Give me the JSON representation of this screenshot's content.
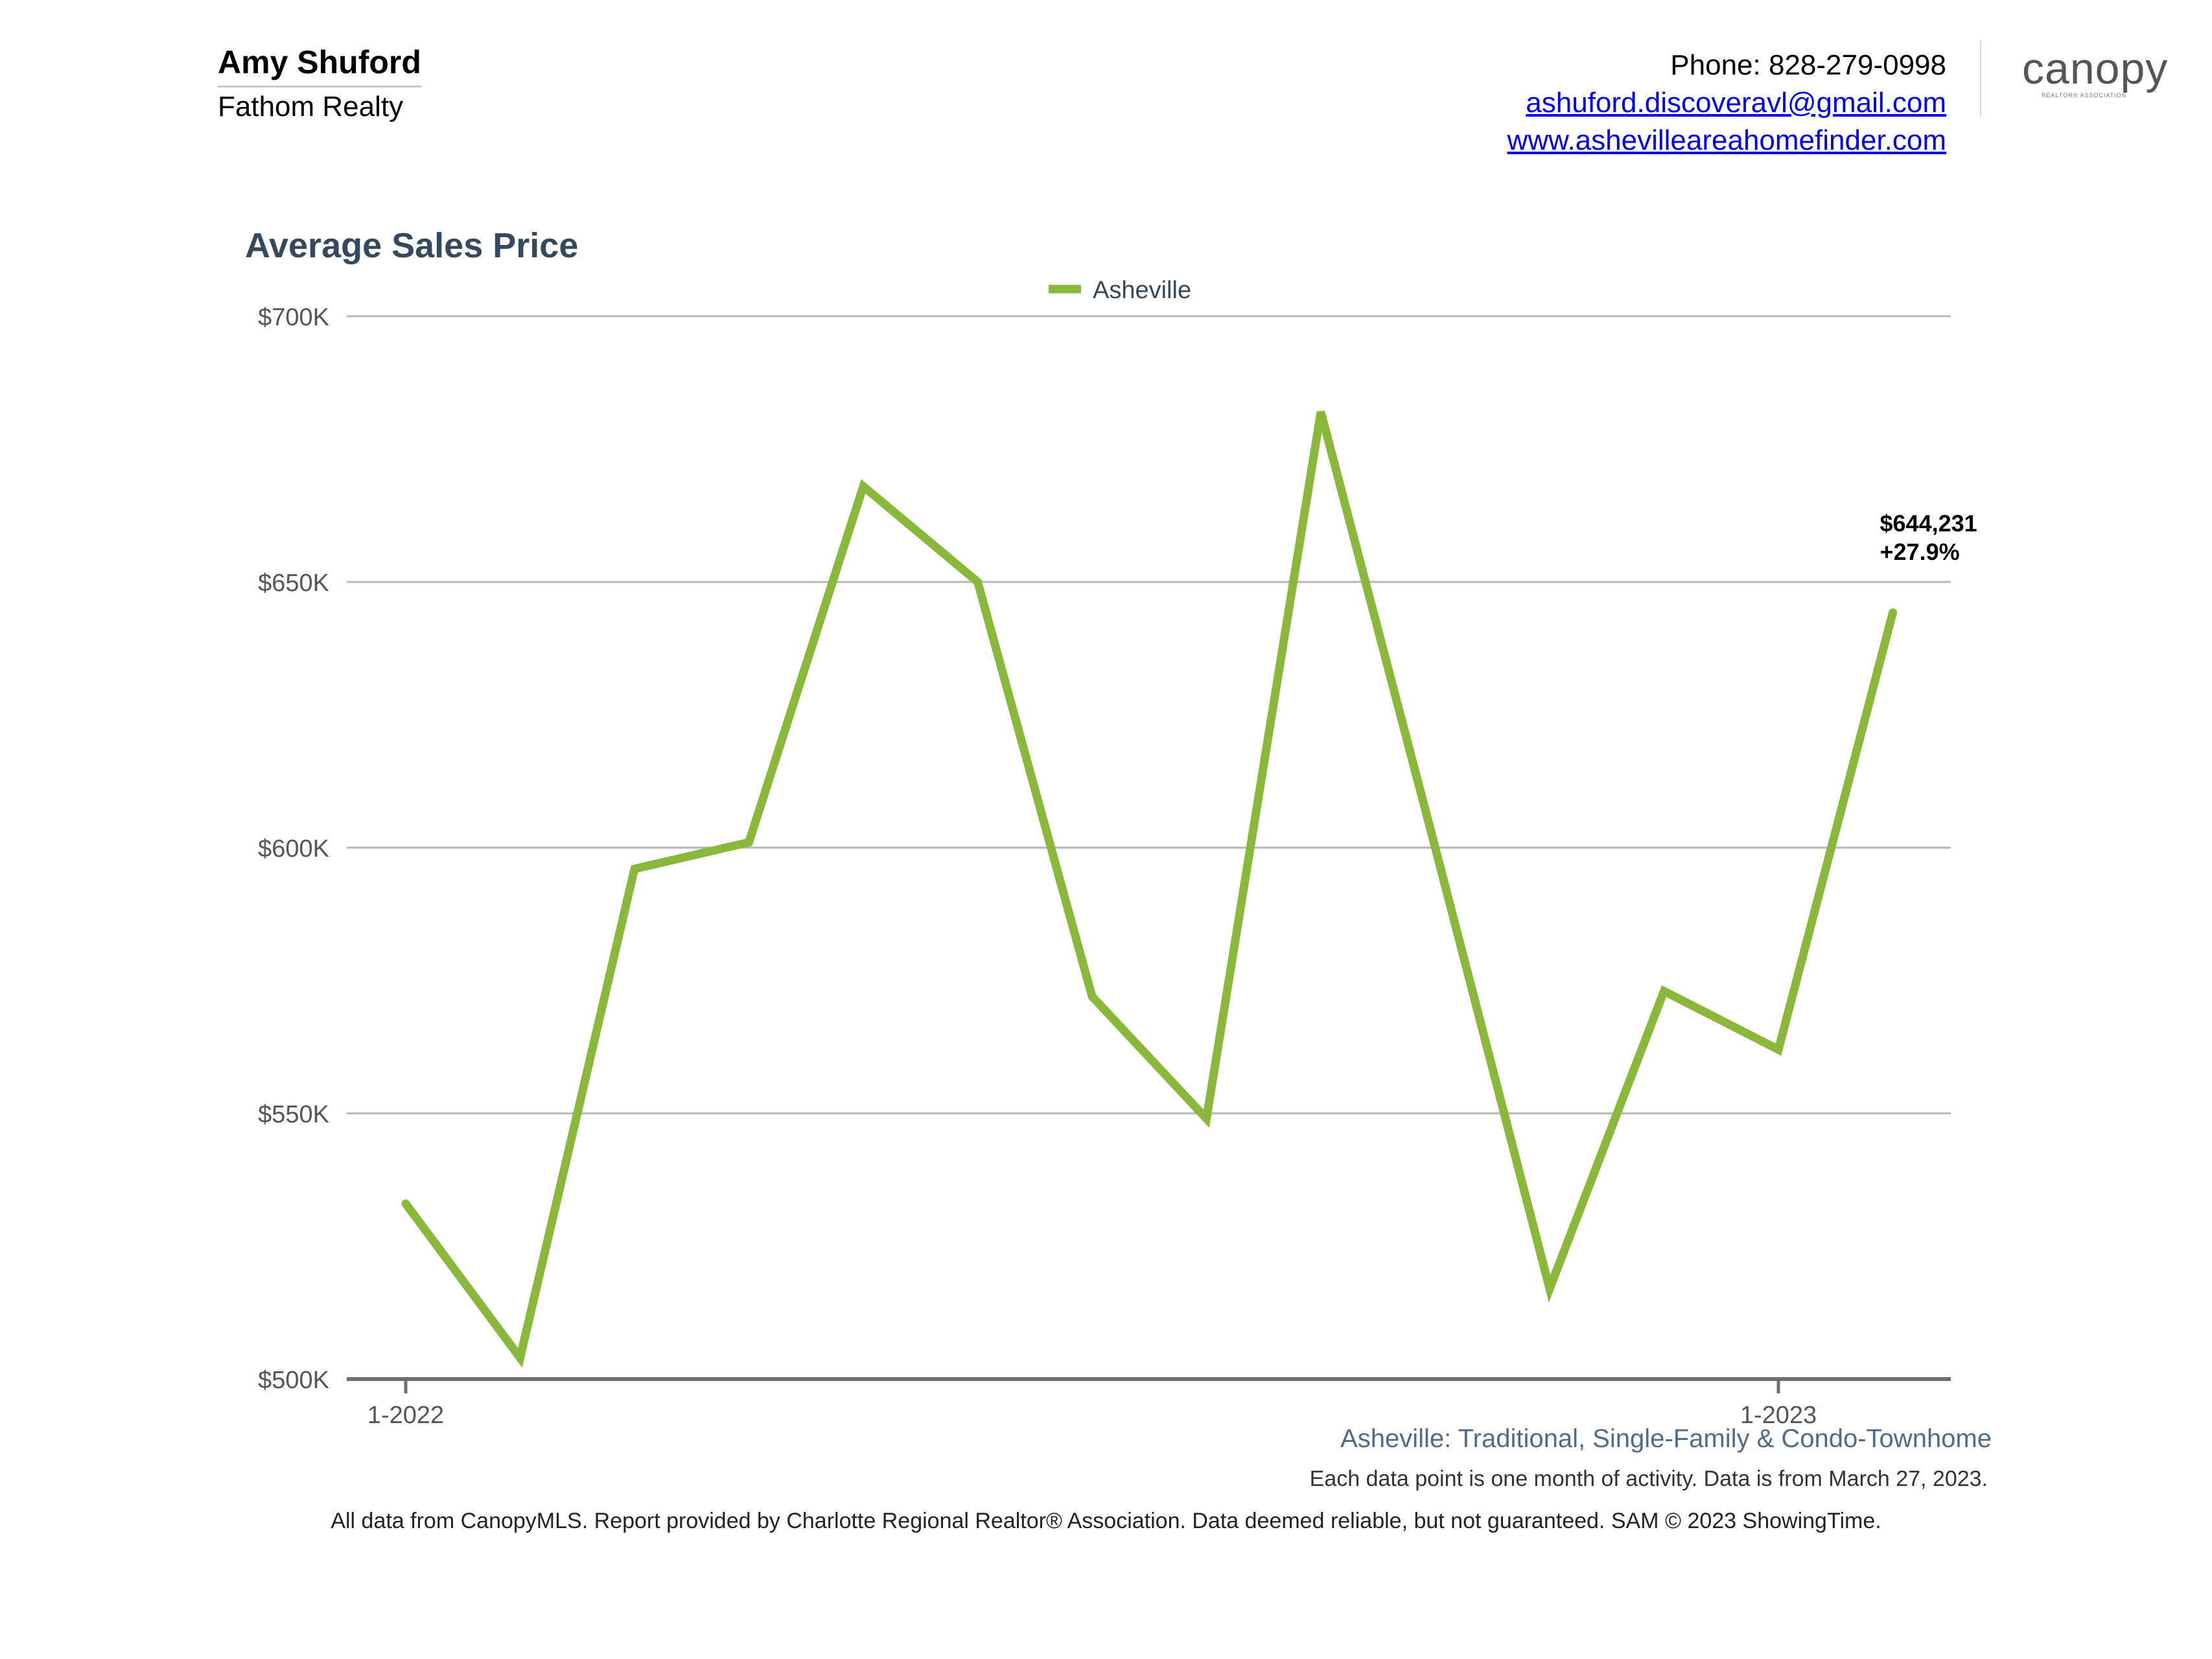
{
  "header": {
    "agent_name": "Amy Shuford",
    "agent_company": "Fathom Realty",
    "phone": "Phone: 828-279-0998",
    "email": "ashuford.discoveravl@gmail.com",
    "website": "www.ashevilleareahomefinder.com",
    "logo_text": "canopy",
    "logo_subtext": "REALTOR® ASSOCIATION"
  },
  "colors": {
    "series": "#8ab83a",
    "title": "#34495e",
    "subtitle": "#4f6b8c",
    "grid": "#b5b5b5",
    "axis": "#6e6e6e"
  },
  "chart_data": {
    "type": "line",
    "title": "Average Sales Price",
    "legend_position": "top-center",
    "grid": true,
    "ylim": [
      500000,
      700000
    ],
    "y_ticks": [
      {
        "value": 500000,
        "label": "$500K"
      },
      {
        "value": 550000,
        "label": "$550K"
      },
      {
        "value": 600000,
        "label": "$600K"
      },
      {
        "value": 650000,
        "label": "$650K"
      },
      {
        "value": 700000,
        "label": "$700K"
      }
    ],
    "x_months": [
      "1-2022",
      "2-2022",
      "3-2022",
      "4-2022",
      "5-2022",
      "6-2022",
      "7-2022",
      "8-2022",
      "9-2022",
      "10-2022",
      "11-2022",
      "12-2022",
      "1-2023",
      "2-2023"
    ],
    "x_tick_labels": [
      {
        "index": 0,
        "label": "1-2022"
      },
      {
        "index": 12,
        "label": "1-2023"
      }
    ],
    "series": [
      {
        "name": "Asheville",
        "values": [
          533000,
          504000,
          596000,
          601000,
          668000,
          650000,
          572000,
          549000,
          682000,
          600000,
          517000,
          573000,
          562000,
          644231
        ]
      }
    ],
    "annotation": {
      "index": 13,
      "value_label": "$644,231",
      "change_label": "+27.9%"
    }
  },
  "footer": {
    "subtitle": "Asheville: Traditional, Single-Family & Condo-Townhome",
    "note": "Each data point is one month of activity. Data is from March 27, 2023.",
    "disclaimer": "All data from CanopyMLS. Report provided by Charlotte Regional Realtor® Association. Data deemed reliable, but not guaranteed. SAM © 2023 ShowingTime."
  }
}
